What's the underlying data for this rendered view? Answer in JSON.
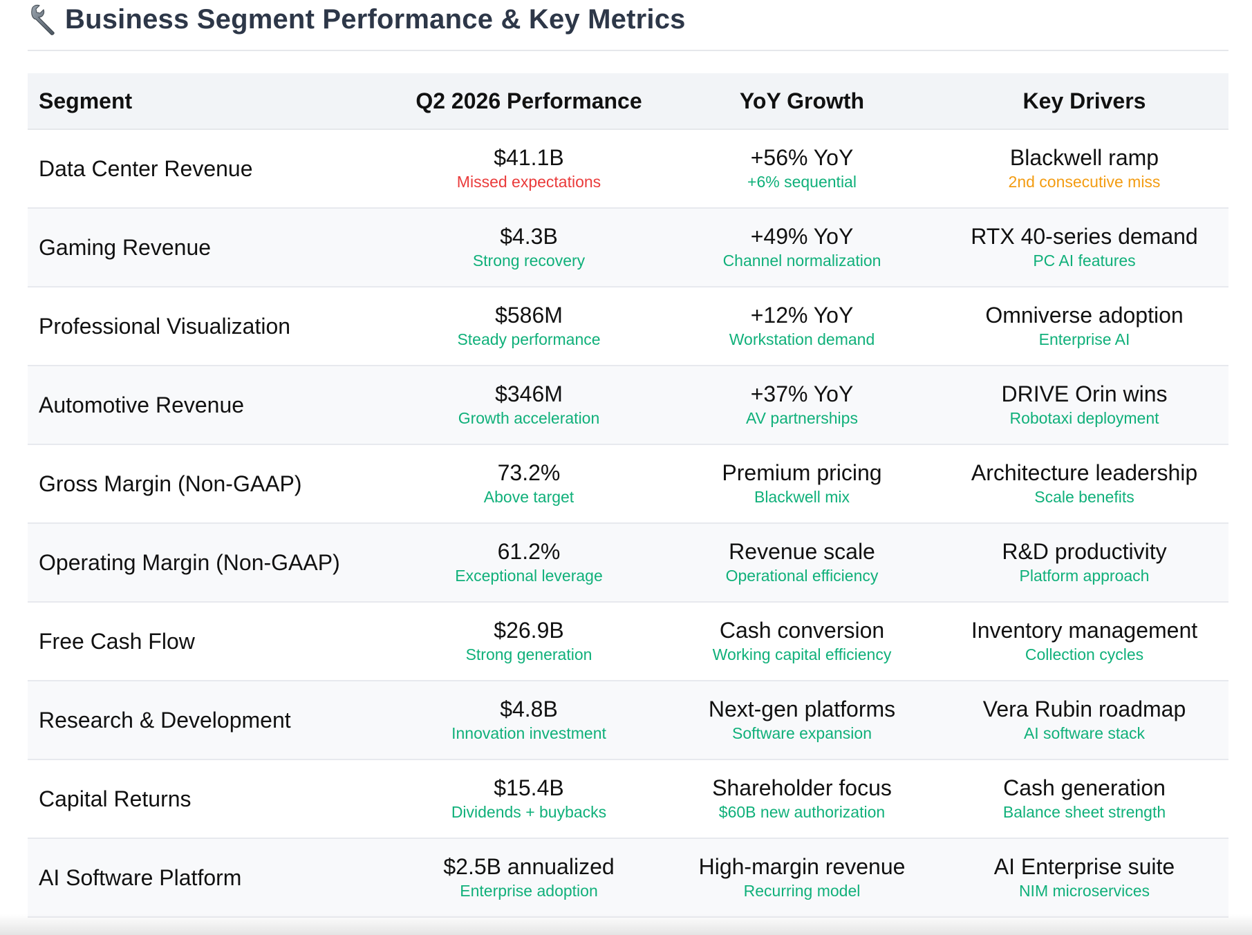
{
  "header": {
    "icon": "wrench-icon",
    "title": "Business Segment Performance & Key Metrics"
  },
  "table": {
    "columns": [
      "Segment",
      "Q2 2026 Performance",
      "YoY Growth",
      "Key Drivers"
    ],
    "rows": [
      {
        "segment": "Data Center Revenue",
        "performance": {
          "value": "$41.1B",
          "note": "Missed expectations",
          "note_color": "#ea3b3b"
        },
        "growth": {
          "value": "+56% YoY",
          "note": "+6% sequential",
          "note_color": "#10b07a"
        },
        "drivers": {
          "value": "Blackwell ramp",
          "note": "2nd consecutive miss",
          "note_color": "#f39c12"
        }
      },
      {
        "segment": "Gaming Revenue",
        "performance": {
          "value": "$4.3B",
          "note": "Strong recovery",
          "note_color": "#10b07a"
        },
        "growth": {
          "value": "+49% YoY",
          "note": "Channel normalization",
          "note_color": "#10b07a"
        },
        "drivers": {
          "value": "RTX 40-series demand",
          "note": "PC AI features",
          "note_color": "#10b07a"
        }
      },
      {
        "segment": "Professional Visualization",
        "performance": {
          "value": "$586M",
          "note": "Steady performance",
          "note_color": "#10b07a"
        },
        "growth": {
          "value": "+12% YoY",
          "note": "Workstation demand",
          "note_color": "#10b07a"
        },
        "drivers": {
          "value": "Omniverse adoption",
          "note": "Enterprise AI",
          "note_color": "#10b07a"
        }
      },
      {
        "segment": "Automotive Revenue",
        "performance": {
          "value": "$346M",
          "note": "Growth acceleration",
          "note_color": "#10b07a"
        },
        "growth": {
          "value": "+37% YoY",
          "note": "AV partnerships",
          "note_color": "#10b07a"
        },
        "drivers": {
          "value": "DRIVE Orin wins",
          "note": "Robotaxi deployment",
          "note_color": "#10b07a"
        }
      },
      {
        "segment": "Gross Margin (Non-GAAP)",
        "performance": {
          "value": "73.2%",
          "note": "Above target",
          "note_color": "#10b07a"
        },
        "growth": {
          "value": "Premium pricing",
          "note": "Blackwell mix",
          "note_color": "#10b07a"
        },
        "drivers": {
          "value": "Architecture leadership",
          "note": "Scale benefits",
          "note_color": "#10b07a"
        }
      },
      {
        "segment": "Operating Margin (Non-GAAP)",
        "performance": {
          "value": "61.2%",
          "note": "Exceptional leverage",
          "note_color": "#10b07a"
        },
        "growth": {
          "value": "Revenue scale",
          "note": "Operational efficiency",
          "note_color": "#10b07a"
        },
        "drivers": {
          "value": "R&D productivity",
          "note": "Platform approach",
          "note_color": "#10b07a"
        }
      },
      {
        "segment": "Free Cash Flow",
        "performance": {
          "value": "$26.9B",
          "note": "Strong generation",
          "note_color": "#10b07a"
        },
        "growth": {
          "value": "Cash conversion",
          "note": "Working capital efficiency",
          "note_color": "#10b07a"
        },
        "drivers": {
          "value": "Inventory management",
          "note": "Collection cycles",
          "note_color": "#10b07a"
        }
      },
      {
        "segment": "Research & Development",
        "performance": {
          "value": "$4.8B",
          "note": "Innovation investment",
          "note_color": "#10b07a"
        },
        "growth": {
          "value": "Next-gen platforms",
          "note": "Software expansion",
          "note_color": "#10b07a"
        },
        "drivers": {
          "value": "Vera Rubin roadmap",
          "note": "AI software stack",
          "note_color": "#10b07a"
        }
      },
      {
        "segment": "Capital Returns",
        "performance": {
          "value": "$15.4B",
          "note": "Dividends + buybacks",
          "note_color": "#10b07a"
        },
        "growth": {
          "value": "Shareholder focus",
          "note": "$60B new authorization",
          "note_color": "#10b07a"
        },
        "drivers": {
          "value": "Cash generation",
          "note": "Balance sheet strength",
          "note_color": "#10b07a"
        }
      },
      {
        "segment": "AI Software Platform",
        "performance": {
          "value": "$2.5B annualized",
          "note": "Enterprise adoption",
          "note_color": "#10b07a"
        },
        "growth": {
          "value": "High-margin revenue",
          "note": "Recurring model",
          "note_color": "#10b07a"
        },
        "drivers": {
          "value": "AI Enterprise suite",
          "note": "NIM microservices",
          "note_color": "#10b07a"
        }
      }
    ]
  }
}
